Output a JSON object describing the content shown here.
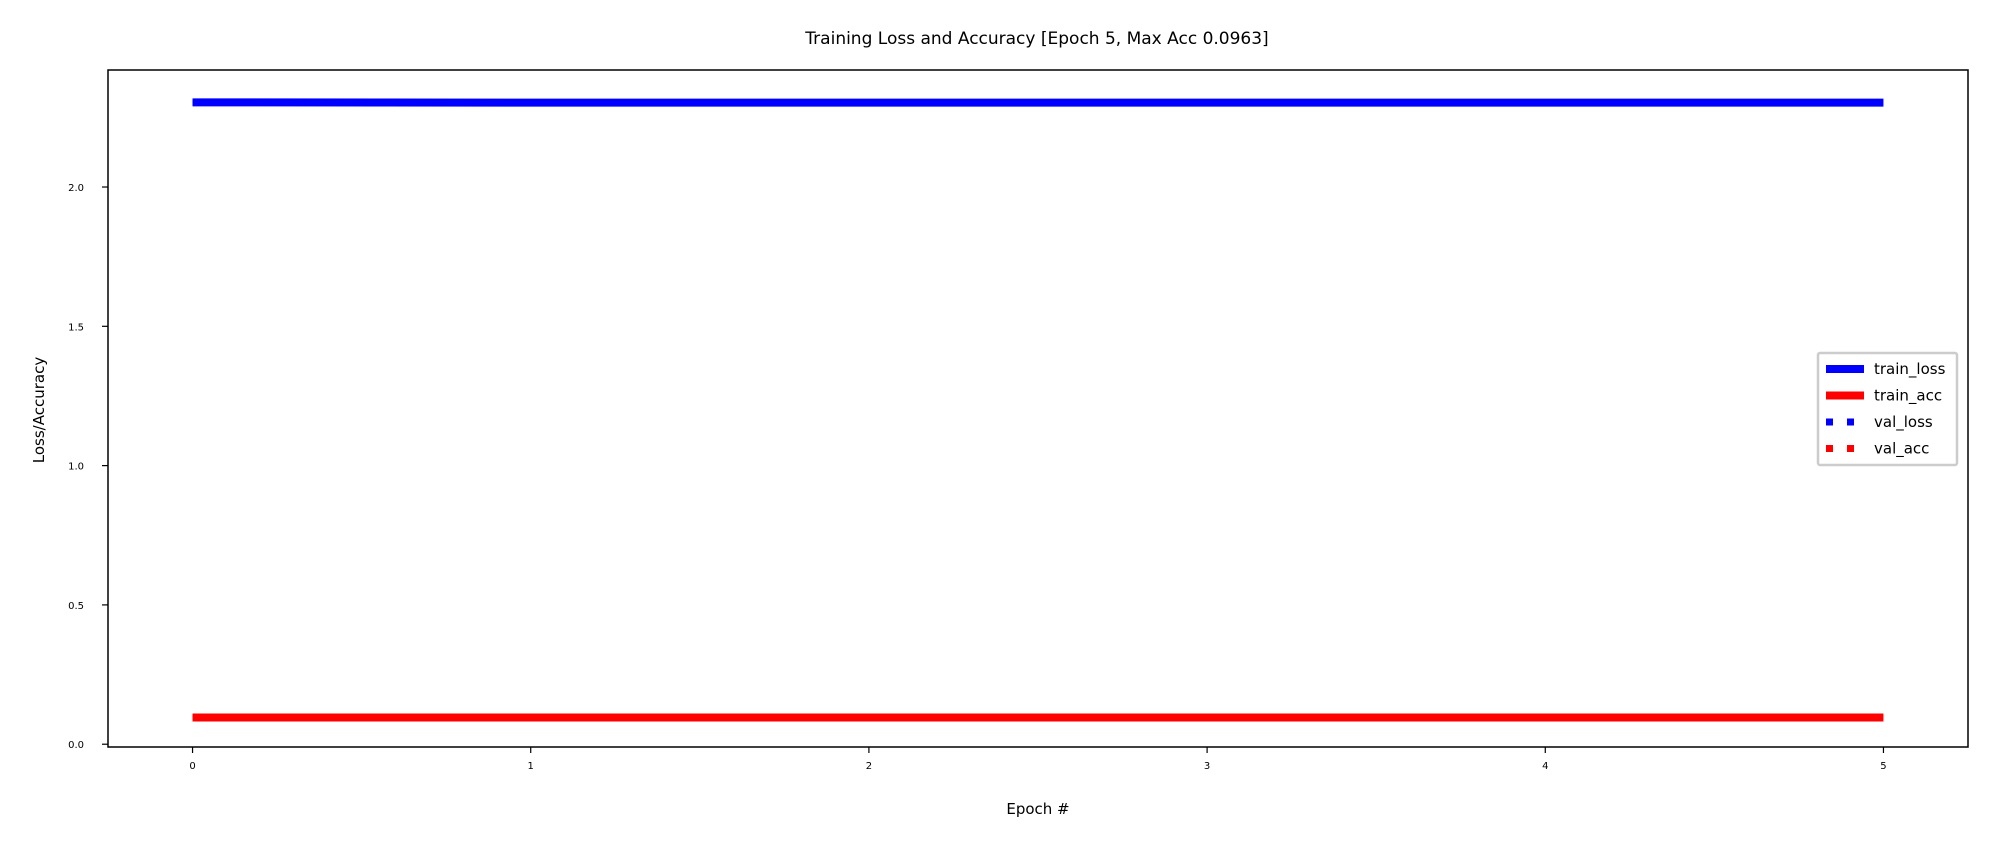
{
  "chart_data": {
    "type": "line",
    "title": "Training Loss and Accuracy [Epoch 5, Max Acc 0.0963]",
    "xlabel": "Epoch #",
    "ylabel": "Loss/Accuracy",
    "xlim": [
      -0.25,
      5.25
    ],
    "ylim": [
      -0.01,
      2.42
    ],
    "xticks": [
      0,
      1,
      2,
      3,
      4,
      5
    ],
    "yticks": [
      0.0,
      0.5,
      1.0,
      1.5,
      2.0
    ],
    "xtick_labels": [
      "0",
      "1",
      "2",
      "3",
      "4",
      "5"
    ],
    "ytick_labels": [
      "0.0",
      "0.5",
      "1.0",
      "1.5",
      "2.0"
    ],
    "grid": false,
    "legend_position": "right",
    "x": [
      0,
      1,
      2,
      3,
      4,
      5
    ],
    "series": [
      {
        "name": "train_loss",
        "values": [
          2.304,
          2.303,
          2.303,
          2.303,
          2.303,
          2.303
        ],
        "color": "#0000ff",
        "style": "solid"
      },
      {
        "name": "train_acc",
        "values": [
          0.096,
          0.096,
          0.096,
          0.096,
          0.096,
          0.096
        ],
        "color": "#ff0000",
        "style": "solid"
      },
      {
        "name": "val_loss",
        "values": [
          2.303,
          2.303,
          2.303,
          2.303,
          2.303,
          2.303
        ],
        "color": "#0000ff",
        "style": "dotted"
      },
      {
        "name": "val_acc",
        "values": [
          0.0963,
          0.0963,
          0.0963,
          0.0963,
          0.0963,
          0.0963
        ],
        "color": "#ff0000",
        "style": "dotted"
      }
    ]
  }
}
